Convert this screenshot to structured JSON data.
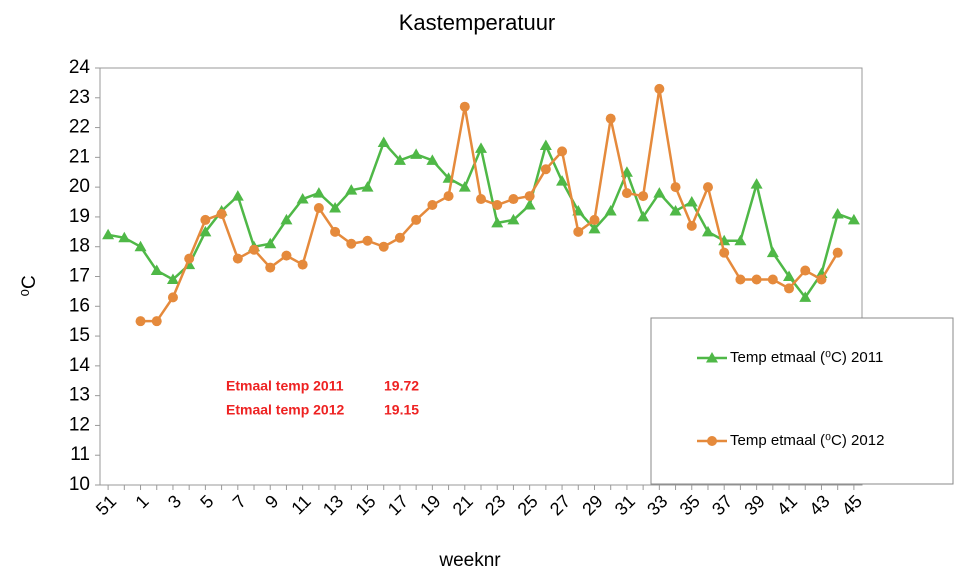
{
  "chart_data": {
    "type": "line",
    "title": "Kastemperatuur",
    "x_label": "weeknr",
    "y_label": "⁰C",
    "categories": [
      "51",
      null,
      "1",
      null,
      "3",
      null,
      "5",
      null,
      "7",
      null,
      "9",
      null,
      "11",
      null,
      "13",
      null,
      "15",
      null,
      "17",
      null,
      "19",
      null,
      "21",
      null,
      "23",
      null,
      "25",
      null,
      "27",
      null,
      "29",
      null,
      "31",
      null,
      "33",
      null,
      "35",
      null,
      "37",
      null,
      "39",
      null,
      "41",
      null,
      "43",
      null,
      "45"
    ],
    "series": [
      {
        "name": "Temp etmaal (⁰C) 2011",
        "color": "#4fb847",
        "marker": "triangle",
        "values": [
          18.4,
          18.3,
          18.0,
          17.2,
          16.9,
          17.4,
          18.5,
          19.2,
          19.7,
          18.0,
          18.1,
          18.9,
          19.6,
          19.8,
          19.3,
          19.9,
          20.0,
          21.5,
          20.9,
          21.1,
          20.9,
          20.3,
          20.0,
          21.3,
          18.8,
          18.9,
          19.4,
          21.4,
          20.2,
          19.2,
          18.6,
          19.2,
          20.5,
          19.0,
          19.8,
          19.2,
          19.5,
          18.5,
          18.2,
          18.2,
          20.1,
          17.8,
          17.0,
          16.3,
          17.1,
          19.1,
          18.9
        ]
      },
      {
        "name": "Temp etmaal (⁰C) 2012",
        "color": "#e58a3c",
        "marker": "circle",
        "values": [
          null,
          null,
          15.5,
          15.5,
          16.3,
          17.6,
          18.9,
          19.1,
          17.6,
          17.9,
          17.3,
          17.7,
          17.4,
          19.3,
          18.5,
          18.1,
          18.2,
          18.0,
          18.3,
          18.9,
          19.4,
          19.7,
          22.7,
          19.6,
          19.4,
          19.6,
          19.7,
          20.6,
          21.2,
          18.5,
          18.9,
          22.3,
          19.8,
          19.7,
          23.3,
          20.0,
          18.7,
          20.0,
          17.8,
          16.9,
          16.9,
          16.9,
          16.6,
          17.2,
          16.9,
          17.8,
          null
        ]
      }
    ],
    "annotations": [
      {
        "label": "Etmaal temp 2011",
        "value": 19.72,
        "color": "#ee2222"
      },
      {
        "label": "Etmaal temp 2012",
        "value": 19.15,
        "color": "#ee2222"
      }
    ],
    "ylim": [
      10,
      24
    ],
    "yticks": [
      10,
      11,
      12,
      13,
      14,
      15,
      16,
      17,
      18,
      19,
      20,
      21,
      22,
      23,
      24
    ],
    "grid": false
  }
}
